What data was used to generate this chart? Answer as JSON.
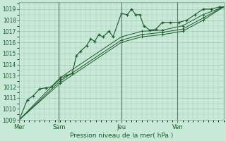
{
  "bg_color": "#c8e8d8",
  "grid_color": "#a8c8b8",
  "line_color_dark": "#1a5c2a",
  "line_color_med": "#2d7a3a",
  "xlabel": "Pression niveau de la mer( hPa )",
  "ylim": [
    1009,
    1019.6
  ],
  "yticks": [
    1009,
    1010,
    1011,
    1012,
    1013,
    1014,
    1015,
    1016,
    1017,
    1018,
    1019
  ],
  "day_labels": [
    "Mer",
    "Sam",
    "Jeu",
    "Ven"
  ],
  "vline_color": "#557766",
  "series_jagged": {
    "x": [
      0,
      0.4,
      0.7,
      1.0,
      1.3,
      1.6,
      2.0,
      2.3,
      2.6,
      2.8,
      3.0,
      3.3,
      3.5,
      3.7,
      3.9,
      4.1,
      4.4,
      4.6,
      5.0,
      5.3,
      5.5,
      5.7,
      5.9,
      6.1,
      6.4,
      6.7,
      7.0,
      7.4,
      7.8,
      8.2,
      8.6,
      9.0,
      9.4,
      9.8,
      10.0
    ],
    "y": [
      1009.0,
      1010.8,
      1011.2,
      1011.8,
      1011.9,
      1012.0,
      1012.7,
      1013.0,
      1013.2,
      1014.8,
      1015.2,
      1015.7,
      1016.3,
      1016.1,
      1016.7,
      1016.5,
      1017.0,
      1016.5,
      1018.6,
      1018.5,
      1019.0,
      1018.5,
      1018.5,
      1017.5,
      1017.1,
      1017.2,
      1017.8,
      1017.8,
      1017.8,
      1018.0,
      1018.5,
      1019.0,
      1019.0,
      1019.2,
      1019.2
    ]
  },
  "series_smooth": [
    {
      "x": [
        0,
        2.0,
        5.0,
        6.0,
        7.0,
        8.0,
        9.0,
        10.0
      ],
      "y": [
        1009.0,
        1012.8,
        1016.5,
        1017.0,
        1017.1,
        1017.5,
        1018.5,
        1019.2
      ]
    },
    {
      "x": [
        0,
        2.0,
        5.0,
        6.0,
        7.0,
        8.0,
        9.0,
        10.0
      ],
      "y": [
        1009.0,
        1012.5,
        1016.2,
        1016.7,
        1016.9,
        1017.2,
        1018.2,
        1019.2
      ]
    },
    {
      "x": [
        0,
        2.0,
        5.0,
        6.0,
        7.0,
        8.0,
        9.0,
        10.0
      ],
      "y": [
        1009.0,
        1012.3,
        1016.0,
        1016.5,
        1016.7,
        1017.0,
        1018.0,
        1019.2
      ]
    }
  ],
  "vline_positions": [
    1.95,
    5.0,
    7.75
  ],
  "xtick_positions": [
    0.0,
    1.95,
    5.0,
    7.75
  ],
  "xlim": [
    0,
    10.0
  ]
}
